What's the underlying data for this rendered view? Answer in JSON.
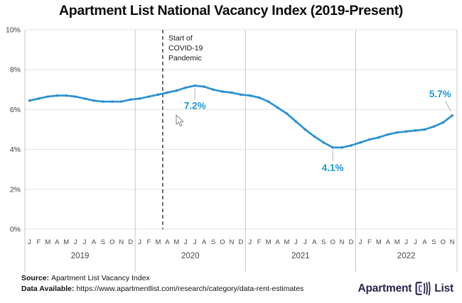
{
  "title": "Apartment List National Vacancy Index (2019-Present)",
  "chart_data": {
    "type": "line",
    "title": "Apartment List National Vacancy Index (2019-Present)",
    "unit": "percent",
    "ylim": [
      0,
      10
    ],
    "ytick_labels": [
      "0%",
      "2%",
      "4%",
      "6%",
      "8%",
      "10%"
    ],
    "grid": true,
    "line_color": "#2196d6",
    "marker_color": "#4a7cc0",
    "years": [
      {
        "label": "2019",
        "months": [
          "J",
          "F",
          "M",
          "A",
          "M",
          "J",
          "J",
          "A",
          "S",
          "O",
          "N",
          "D"
        ],
        "values": [
          6.45,
          6.55,
          6.65,
          6.7,
          6.7,
          6.65,
          6.55,
          6.45,
          6.4,
          6.4,
          6.4,
          6.5
        ]
      },
      {
        "label": "2020",
        "months": [
          "J",
          "F",
          "M",
          "A",
          "M",
          "J",
          "J",
          "A",
          "S",
          "O",
          "N",
          "D"
        ],
        "values": [
          6.55,
          6.65,
          6.75,
          6.85,
          6.95,
          7.1,
          7.2,
          7.15,
          7.0,
          6.9,
          6.85,
          6.75
        ]
      },
      {
        "label": "2021",
        "months": [
          "J",
          "F",
          "M",
          "A",
          "M",
          "J",
          "J",
          "A",
          "S",
          "O",
          "N",
          "D"
        ],
        "values": [
          6.7,
          6.6,
          6.4,
          6.1,
          5.8,
          5.4,
          5.0,
          4.65,
          4.35,
          4.1,
          4.1,
          4.2
        ]
      },
      {
        "label": "2022",
        "months": [
          "J",
          "F",
          "M",
          "A",
          "M",
          "J",
          "J",
          "A",
          "S",
          "O",
          "N"
        ],
        "values": [
          4.35,
          4.5,
          4.6,
          4.75,
          4.85,
          4.9,
          4.95,
          5.0,
          5.15,
          5.35,
          5.7
        ]
      }
    ],
    "vline_annotation": {
      "lines": [
        "Start of",
        "COVID-19",
        "Pandemic"
      ],
      "month_boundary_index": 15,
      "position": "between Mar and Apr 2020"
    },
    "callouts": [
      {
        "text": "7.2%",
        "month_index": 18,
        "month": "Jul 2020",
        "placement": "below"
      },
      {
        "text": "4.1%",
        "month_index": 33,
        "month": "Oct 2021",
        "placement": "below"
      },
      {
        "text": "5.7%",
        "month_index": 46,
        "month": "Nov 2022",
        "placement": "above-left"
      }
    ]
  },
  "footer": {
    "source_label": "Source:",
    "source_value": "Apartment List Vacancy Index",
    "data_available_label": "Data Available:",
    "data_available_url": "https://www.apartmentlist.com/research/category/data-rent-estimates"
  },
  "logo": {
    "word1": "Apartment",
    "word2": "List"
  },
  "cursor": {
    "shape": "arrow-pointer"
  }
}
